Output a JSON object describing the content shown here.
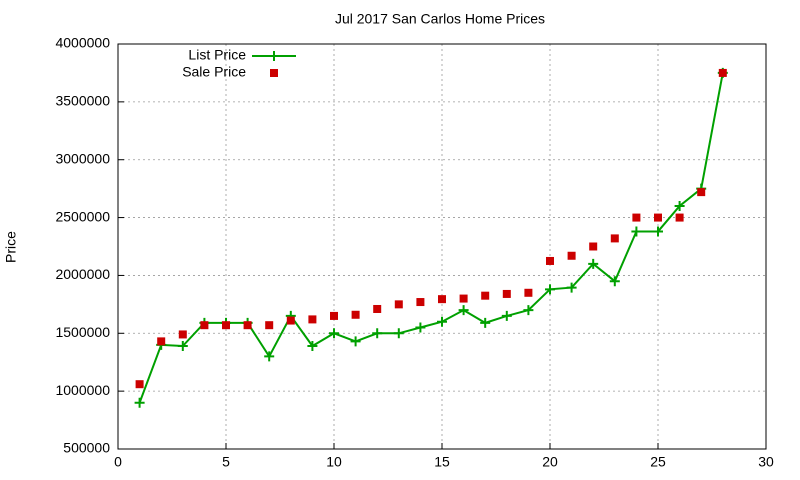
{
  "chart_data": {
    "type": "line",
    "title": "Jul 2017 San Carlos Home Prices",
    "y_label": "Price",
    "x": [
      1,
      2,
      3,
      4,
      5,
      6,
      7,
      8,
      9,
      10,
      11,
      12,
      13,
      14,
      15,
      16,
      17,
      18,
      19,
      20,
      21,
      22,
      23,
      24,
      25,
      26,
      27,
      28
    ],
    "series": [
      {
        "name": "List Price",
        "color": "#00a000",
        "style": "linespoints",
        "values": [
          900000,
          1400000,
          1390000,
          1590000,
          1590000,
          1590000,
          1300000,
          1650000,
          1390000,
          1500000,
          1430000,
          1500000,
          1500000,
          1550000,
          1600000,
          1700000,
          1590000,
          1650000,
          1700000,
          1880000,
          1895000,
          2100000,
          1950000,
          2380000,
          2380000,
          2600000,
          2750000,
          3750000
        ]
      },
      {
        "name": "Sale Price",
        "color": "#cc0000",
        "style": "points",
        "values": [
          1060000,
          1430000,
          1490000,
          1570000,
          1570000,
          1570000,
          1570000,
          1610000,
          1620000,
          1650000,
          1660000,
          1710000,
          1750000,
          1770000,
          1795000,
          1800000,
          1825000,
          1840000,
          1850000,
          2125000,
          2170000,
          2250000,
          2320000,
          2500000,
          2500000,
          2500000,
          2720000,
          3750000
        ]
      }
    ],
    "xlim": [
      0,
      30
    ],
    "xticks": [
      0,
      5,
      10,
      15,
      20,
      25,
      30
    ],
    "ylim": [
      500000,
      4000000
    ],
    "yticks": [
      500000,
      1000000,
      1500000,
      2000000,
      2500000,
      3000000,
      3500000,
      4000000
    ],
    "grid": true,
    "legend": "top-left"
  }
}
